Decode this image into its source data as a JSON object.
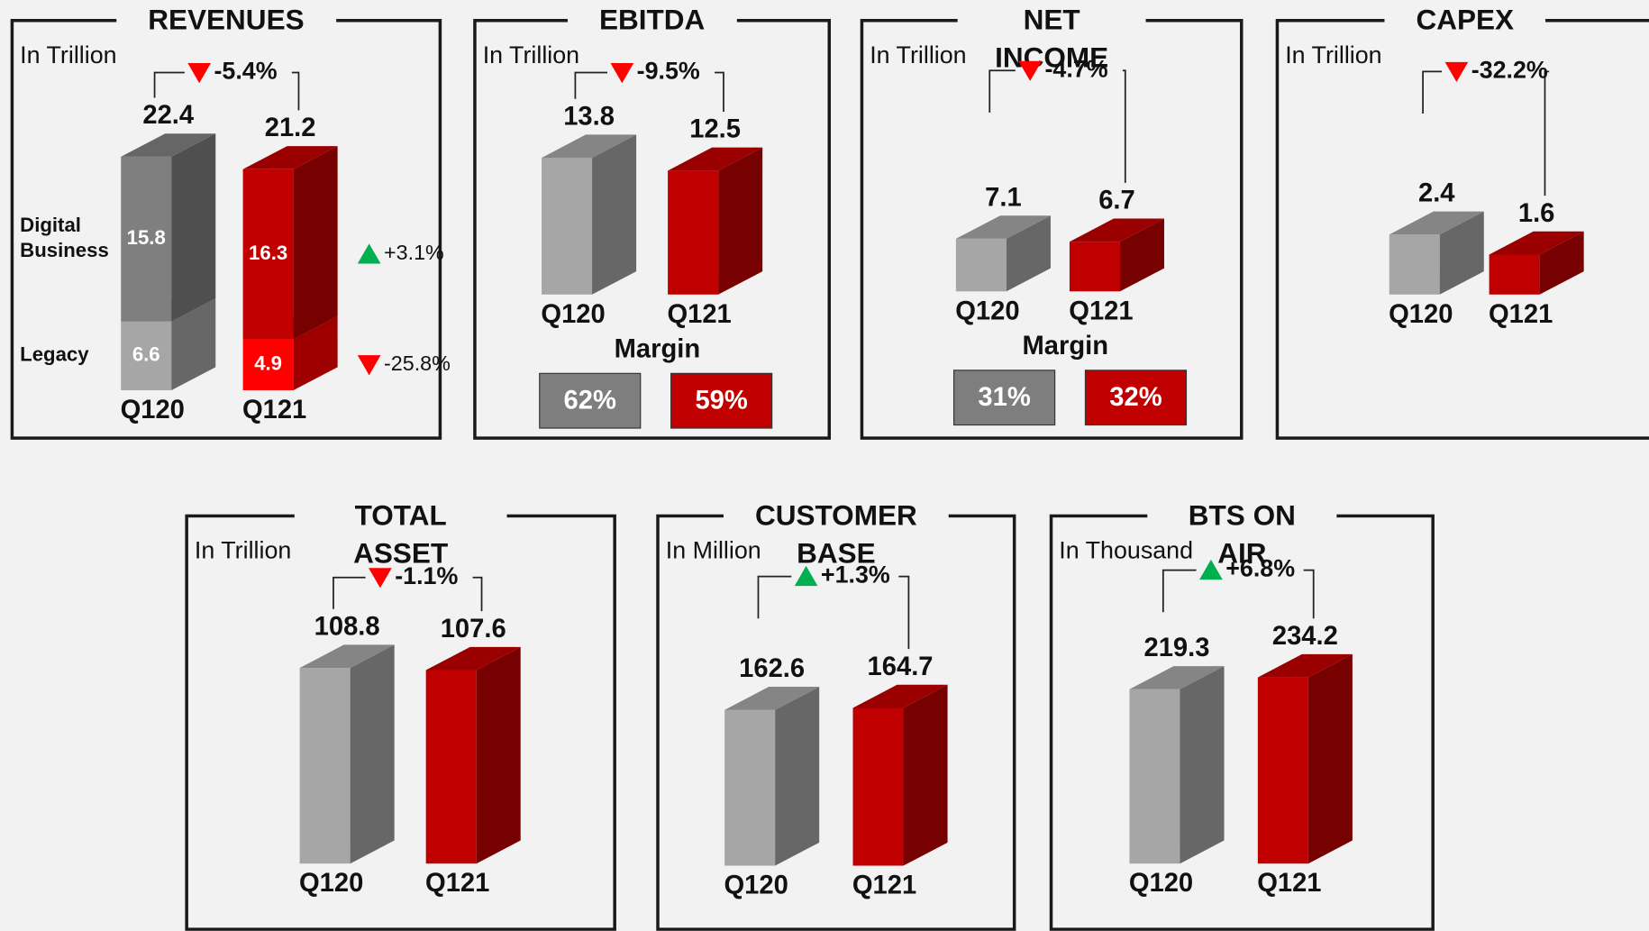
{
  "chart_data": [
    {
      "type": "bar",
      "stacked": true,
      "title": "REVENUES",
      "subtitle": "In Trillion",
      "categories": [
        "Q120",
        "Q121"
      ],
      "totals": [
        22.4,
        21.2
      ],
      "change": {
        "value": -5.4,
        "label": "-5.4%"
      },
      "series": [
        {
          "name": "Legacy",
          "colors": [
            "#a6a6a6",
            "#ff0000"
          ],
          "values": [
            6.6,
            4.9
          ],
          "change": {
            "value": -25.8,
            "label": "-25.8%"
          }
        },
        {
          "name": "Digital Business",
          "colors": [
            "#7f7f7f",
            "#c00000"
          ],
          "values": [
            15.8,
            16.3
          ],
          "change": {
            "value": 3.1,
            "label": "+3.1%"
          }
        }
      ]
    },
    {
      "type": "bar",
      "title": "EBITDA",
      "subtitle": "In Trillion",
      "categories": [
        "Q120",
        "Q121"
      ],
      "values": [
        13.8,
        12.5
      ],
      "colors": [
        "#a6a6a6",
        "#c00000"
      ],
      "change": {
        "value": -9.5,
        "label": "-9.5%"
      },
      "margin": {
        "label": "Margin",
        "values": [
          62,
          59
        ],
        "value_labels": [
          "62%",
          "59%"
        ]
      }
    },
    {
      "type": "bar",
      "title": "NET INCOME",
      "subtitle": "In Trillion",
      "categories": [
        "Q120",
        "Q121"
      ],
      "values": [
        7.1,
        6.7
      ],
      "colors": [
        "#a6a6a6",
        "#c00000"
      ],
      "change": {
        "value": -4.7,
        "label": "-4.7%"
      },
      "margin": {
        "label": "Margin",
        "values": [
          31,
          32
        ],
        "value_labels": [
          "31%",
          "32%"
        ]
      }
    },
    {
      "type": "bar",
      "title": "CAPEX",
      "subtitle": "In Trillion",
      "categories": [
        "Q120",
        "Q121"
      ],
      "values": [
        2.4,
        1.6
      ],
      "colors": [
        "#a6a6a6",
        "#c00000"
      ],
      "change": {
        "value": -32.2,
        "label": "-32.2%"
      }
    },
    {
      "type": "bar",
      "title": "TOTAL ASSET",
      "subtitle": "In Trillion",
      "categories": [
        "Q120",
        "Q121"
      ],
      "values": [
        108.8,
        107.6
      ],
      "colors": [
        "#a6a6a6",
        "#c00000"
      ],
      "change": {
        "value": -1.1,
        "label": "-1.1%"
      }
    },
    {
      "type": "bar",
      "title": "CUSTOMER BASE",
      "subtitle": "In Million",
      "categories": [
        "Q120",
        "Q121"
      ],
      "values": [
        162.6,
        164.7
      ],
      "colors": [
        "#a6a6a6",
        "#c00000"
      ],
      "change": {
        "value": 1.3,
        "label": "+1.3%"
      }
    },
    {
      "type": "bar",
      "title": "BTS ON AIR",
      "subtitle": "In Thousand",
      "categories": [
        "Q120",
        "Q121"
      ],
      "values": [
        219.3,
        234.2
      ],
      "colors": [
        "#a6a6a6",
        "#c00000"
      ],
      "change": {
        "value": 6.8,
        "label": "+6.8%"
      }
    }
  ]
}
